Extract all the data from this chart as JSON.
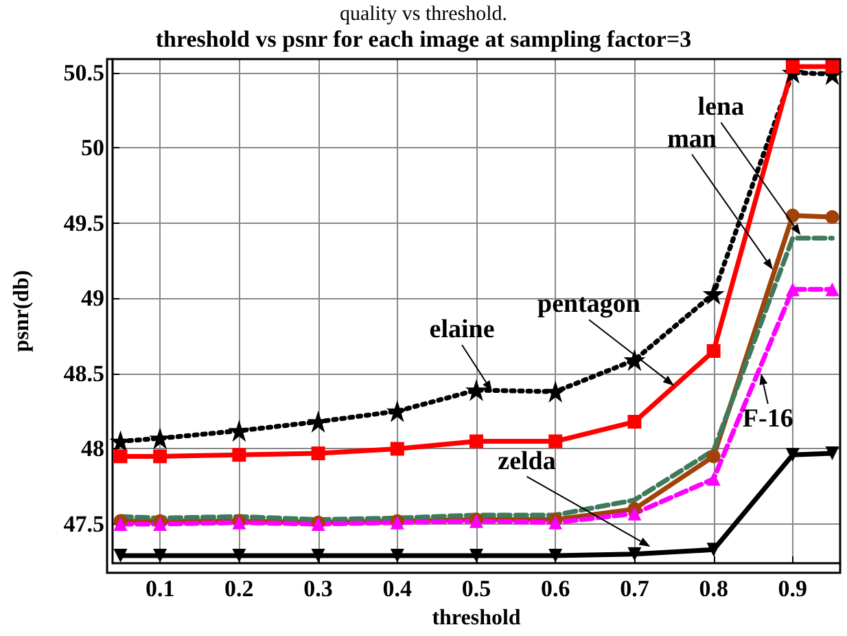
{
  "chart_data": {
    "type": "line",
    "title": "quality vs threshold.",
    "subtitle": "threshold vs psnr for each image at sampling factor=3",
    "xlabel": "threshold",
    "ylabel": "psnr(db)",
    "x": [
      0.05,
      0.1,
      0.2,
      0.3,
      0.4,
      0.5,
      0.6,
      0.7,
      0.8,
      0.9,
      0.95
    ],
    "series": [
      {
        "color": "#000000",
        "marker": "star",
        "line_style": "dotted",
        "values": [
          48.05,
          48.07,
          48.12,
          48.18,
          48.25,
          48.39,
          48.38,
          48.59,
          49.03,
          50.5,
          50.49
        ]
      },
      {
        "color": "#ff0000",
        "marker": "square",
        "line_style": "solid",
        "values": [
          47.95,
          47.95,
          47.96,
          47.97,
          48.0,
          48.05,
          48.05,
          48.18,
          48.65,
          50.54,
          50.54
        ]
      },
      {
        "color": "#a0420a",
        "marker": "circle",
        "line_style": "solid",
        "values": [
          47.52,
          47.52,
          47.52,
          47.51,
          47.52,
          47.53,
          47.53,
          47.6,
          47.95,
          49.55,
          49.54
        ]
      },
      {
        "color": "#3f7a5a",
        "marker": "none",
        "line_style": "dashed",
        "values": [
          47.55,
          47.54,
          47.55,
          47.53,
          47.54,
          47.56,
          47.56,
          47.66,
          47.99,
          49.4,
          49.4
        ]
      },
      {
        "color": "#ff00ff",
        "marker": "triangle",
        "line_style": "dashed",
        "values": [
          47.5,
          47.5,
          47.51,
          47.5,
          47.51,
          47.52,
          47.51,
          47.57,
          47.8,
          49.06,
          49.06
        ]
      },
      {
        "color": "#000000",
        "marker": "triangle-down",
        "line_style": "solid",
        "values": [
          47.29,
          47.29,
          47.29,
          47.29,
          47.29,
          47.29,
          47.29,
          47.3,
          47.33,
          47.96,
          47.97
        ]
      }
    ],
    "xlim": [
      0.04,
      0.96
    ],
    "xticks": [
      0.1,
      0.2,
      0.3,
      0.4,
      0.5,
      0.6,
      0.7,
      0.8,
      0.9
    ],
    "ylim": [
      47.24,
      50.59
    ],
    "yticks": [
      47.5,
      48,
      48.5,
      49,
      49.5,
      50,
      50.5
    ],
    "grid": true,
    "annotations": [
      {
        "text": "elaine",
        "x": 0.52,
        "y": 48.38
      },
      {
        "text": "pentagon",
        "x": 0.75,
        "y": 48.42
      },
      {
        "text": "lena",
        "x": 0.91,
        "y": 49.42
      },
      {
        "text": "man",
        "x": 0.875,
        "y": 49.19
      },
      {
        "text": "F-16",
        "x": 0.86,
        "y": 48.5
      },
      {
        "text": "zelda",
        "x": 0.72,
        "y": 47.35
      }
    ]
  }
}
